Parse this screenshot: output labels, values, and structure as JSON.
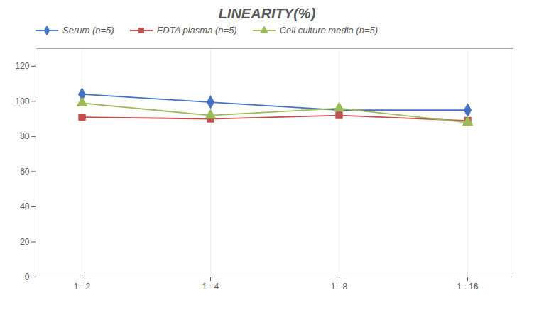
{
  "chart_data": {
    "type": "line",
    "title": "LINEARITY(%)",
    "categories": [
      "1 : 2",
      "1 : 4",
      "1 : 8",
      "1 : 16"
    ],
    "series": [
      {
        "name": "Serum (n=5)",
        "color": "#4472C4",
        "marker": "diamond",
        "values": [
          104,
          99.5,
          95,
          95
        ]
      },
      {
        "name": "EDTA plasma (n=5)",
        "color": "#C0504D",
        "marker": "square",
        "values": [
          91,
          90,
          92,
          89
        ]
      },
      {
        "name": "Cell culture media (n=5)",
        "color": "#9BBB59",
        "marker": "triangle",
        "values": [
          99,
          92,
          96,
          88
        ]
      }
    ],
    "ylim": [
      0,
      130
    ],
    "yticks": [
      0,
      20,
      40,
      60,
      80,
      100,
      120
    ],
    "grid": "x",
    "legend": "top left"
  }
}
